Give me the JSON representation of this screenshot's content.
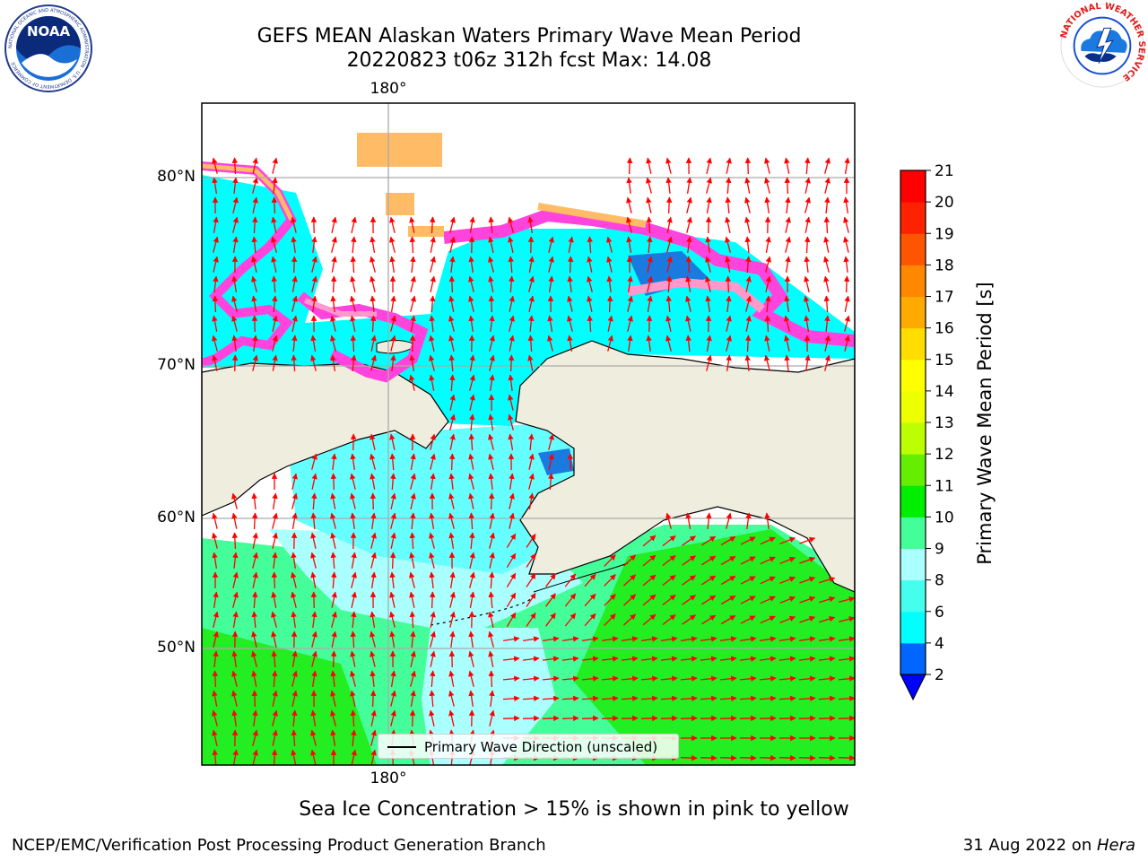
{
  "header": {
    "title_line1": "GEFS MEAN Alaskan Waters Primary Wave Mean Period",
    "title_line2": "20220823 t06z 312h fcst   Max: 14.08"
  },
  "logos": {
    "noaa_text": "NOAA",
    "noaa_ring": "NATIONAL OCEANIC AND ATMOSPHERIC ADMINISTRATION · U.S. DEPARTMENT OF COMMERCE",
    "nws_ring": "NATIONAL WEATHER SERVICE"
  },
  "map": {
    "lon_labels": [
      "180°",
      "180°"
    ],
    "lat_labels": [
      "80°N",
      "70°N",
      "60°N",
      "50°N"
    ],
    "legend_label": "Primary Wave Direction (unscaled)",
    "arrow_color": "#ff0000",
    "land_color": "#efedde",
    "ice_colors": [
      "#ff44dd",
      "#ff99cc",
      "#ffbb66",
      "#ffee88"
    ]
  },
  "colorbar": {
    "label": "Primary Wave Mean Period [s]",
    "ticks": [
      "2",
      "4",
      "6",
      "8",
      "9",
      "10",
      "11",
      "12",
      "13",
      "14",
      "15",
      "16",
      "17",
      "18",
      "19",
      "20",
      "21"
    ],
    "colors": [
      "#0066ff",
      "#00ffff",
      "#44ffee",
      "#aaffff",
      "#44ff99",
      "#00ee00",
      "#66ee00",
      "#bbff00",
      "#eeff00",
      "#ffff00",
      "#ffdd00",
      "#ffaa00",
      "#ff8800",
      "#ff5500",
      "#ff2200",
      "#ff0000"
    ],
    "extend_color": "#0000ff"
  },
  "footnote": "Sea Ice Concentration > 15% is shown in pink to yellow",
  "footer": {
    "left": "NCEP/EMC/Verification Post Processing Product Generation Branch",
    "right_date": "31 Aug 2022 on ",
    "right_host": "Hera"
  }
}
